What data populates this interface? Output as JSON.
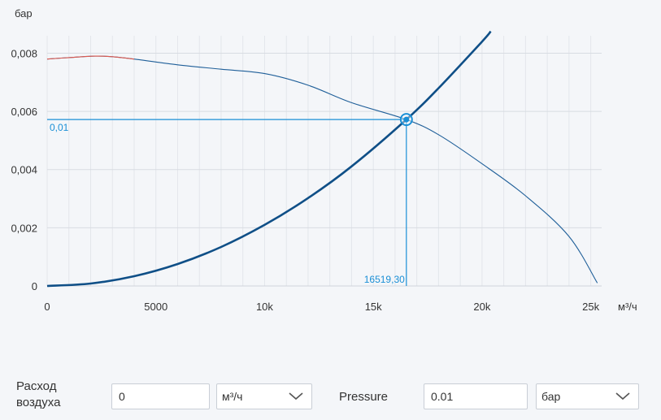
{
  "chart_data": {
    "type": "line",
    "y_unit": "бар",
    "x_unit": "м³/ч",
    "xlim": [
      0,
      25500
    ],
    "ylim": [
      0,
      0.0086
    ],
    "x_ticks": [
      {
        "value": 0,
        "label": "0"
      },
      {
        "value": 5000,
        "label": "5000"
      },
      {
        "value": 10000,
        "label": "10k"
      },
      {
        "value": 15000,
        "label": "15k"
      },
      {
        "value": 20000,
        "label": "20k"
      },
      {
        "value": 25000,
        "label": "25k"
      }
    ],
    "y_ticks": [
      {
        "value": 0,
        "label": "0"
      },
      {
        "value": 0.002,
        "label": "0,002"
      },
      {
        "value": 0.004,
        "label": "0,004"
      },
      {
        "value": 0.006,
        "label": "0,006"
      },
      {
        "value": 0.008,
        "label": "0,008"
      }
    ],
    "grid": true,
    "series": [
      {
        "color": "#1f5f99",
        "highlight_color": "#e05a4f",
        "highlight_until_x": 4000,
        "x": [
          0,
          1000,
          2200,
          3000,
          4000,
          6000,
          8000,
          10000,
          12000,
          14000,
          16519.3,
          18000,
          20000,
          22000,
          24000,
          25300
        ],
        "y": [
          0.0078,
          0.00785,
          0.0079,
          0.00788,
          0.0078,
          0.0076,
          0.00745,
          0.0073,
          0.0069,
          0.0063,
          0.00572,
          0.0052,
          0.0042,
          0.0031,
          0.0017,
          0.0001
        ]
      },
      {
        "color": "#0f4f87",
        "x": [
          0,
          2000,
          4000,
          6000,
          8000,
          10000,
          12000,
          14000,
          16519.3,
          18000,
          20000,
          20400
        ],
        "y": [
          0,
          8.4e-05,
          0.000336,
          0.000755,
          0.00134,
          0.0021,
          0.00302,
          0.00411,
          0.00572,
          0.0068,
          0.0084,
          0.00875
        ]
      }
    ],
    "operating_point": {
      "x": 16519.3,
      "y": 0.00572,
      "x_label": "16519,30",
      "y_label": "0,01",
      "color": "#1a8fd6"
    }
  },
  "controls": {
    "airflow_label": "Расход\nвоздуха",
    "airflow_value": "0",
    "airflow_unit": "м³/ч",
    "pressure_label": "Pressure",
    "pressure_value": "0.01",
    "pressure_unit": "бар"
  },
  "icons": {
    "dropdown": "chevron-down-icon"
  }
}
